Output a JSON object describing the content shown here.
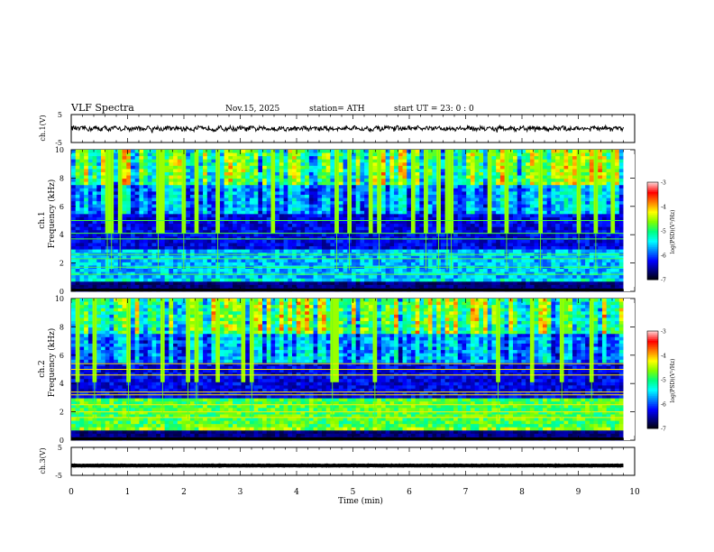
{
  "header": {
    "title": "VLF  Spectra",
    "date": "Nov.15, 2025",
    "station": "station= ATH",
    "start": "start  UT  =    23: 0  : 0"
  },
  "chart_data": [
    {
      "type": "line",
      "panel": "waveform-ch1",
      "ylabel": "ch.1(V)",
      "ylim": [
        -5,
        5
      ],
      "yticks": [
        "5",
        "-5"
      ],
      "xlim": [
        0,
        10
      ],
      "trace_level": 0.0,
      "trace_amplitude": 0.8
    },
    {
      "type": "heatmap",
      "panel": "spectrogram-ch1",
      "ylabel_line1": "ch.1",
      "ylabel_line2": "Frequency  (kHz)",
      "ylim": [
        0,
        10
      ],
      "yticks": [
        "0",
        "2",
        "4",
        "6",
        "8",
        "10"
      ],
      "xlim": [
        0,
        10
      ],
      "colorbar": {
        "label": "log(PSD)(V²/Hz)",
        "range": [
          -7,
          -3
        ],
        "ticks": [
          "-3",
          "-4",
          "-5",
          "-6",
          "-7"
        ]
      }
    },
    {
      "type": "heatmap",
      "panel": "spectrogram-ch2",
      "ylabel_line1": "ch.2",
      "ylabel_line2": "Frequency  (kHz)",
      "ylim": [
        0,
        10
      ],
      "yticks": [
        "0",
        "2",
        "4",
        "6",
        "8",
        "10"
      ],
      "xlim": [
        0,
        10
      ],
      "colorbar": {
        "label": "log(PSD)(V²/Hz)",
        "range": [
          -7,
          -3
        ],
        "ticks": [
          "-3",
          "-4",
          "-5",
          "-6",
          "-7"
        ]
      }
    },
    {
      "type": "line",
      "panel": "waveform-ch3",
      "ylabel": "ch.3(V)",
      "ylim": [
        -5,
        5
      ],
      "yticks": [
        "5",
        "-5"
      ],
      "xlim": [
        0,
        10
      ],
      "trace_level": -1.5,
      "trace_amplitude": 0.15
    }
  ],
  "x_axis": {
    "label": "Time  (min)",
    "ticks": [
      "0",
      "1",
      "2",
      "3",
      "4",
      "5",
      "6",
      "7",
      "8",
      "9",
      "10"
    ],
    "data_end": 9.8
  },
  "colors": {
    "trace": "#000000",
    "colormap": [
      "#000000",
      "#00007f",
      "#0000ff",
      "#0080ff",
      "#00ffff",
      "#00ff80",
      "#80ff00",
      "#ffff00",
      "#ff8000",
      "#ff0000",
      "#ffc8c8"
    ]
  }
}
